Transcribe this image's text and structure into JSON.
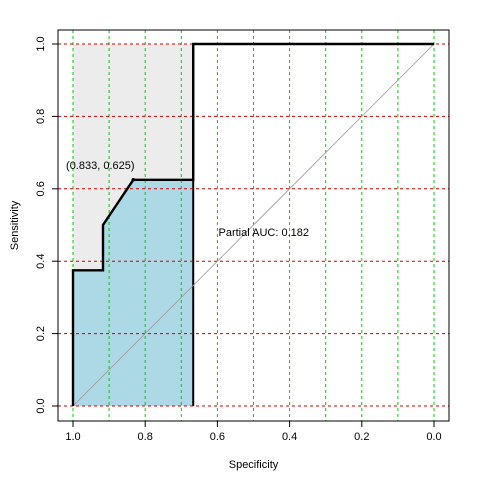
{
  "chart_data": {
    "type": "line",
    "xlabel": "Specificity",
    "ylabel": "Sensitivity",
    "xlim": [
      1.0,
      0.0
    ],
    "ylim": [
      0.0,
      1.0
    ],
    "x_reversed": true,
    "x_ticks": [
      "1.0",
      "0.8",
      "0.6",
      "0.4",
      "0.2",
      "0.0"
    ],
    "x_tick_values": [
      1.0,
      0.8,
      0.6,
      0.4,
      0.2,
      0.0
    ],
    "y_ticks": [
      "0.0",
      "0.2",
      "0.4",
      "0.6",
      "0.8",
      "1.0"
    ],
    "y_tick_values": [
      0.0,
      0.2,
      0.4,
      0.6,
      0.8,
      1.0
    ],
    "grid": {
      "vertical_color": "#00cc00",
      "horizontal_color": "#cc0000",
      "vertical_values": [
        1.0,
        0.9,
        0.8,
        0.7,
        0.6,
        0.5,
        0.4,
        0.3,
        0.2,
        0.1,
        0.0
      ],
      "horizontal_values": [
        0.0,
        0.2,
        0.4,
        0.6,
        0.8,
        1.0
      ]
    },
    "roc_curve": {
      "specificity": [
        1.0,
        1.0,
        0.917,
        0.917,
        0.833,
        0.667,
        0.667,
        0.0
      ],
      "sensitivity": [
        0.0,
        0.375,
        0.375,
        0.5,
        0.625,
        0.625,
        1.0,
        1.0
      ]
    },
    "partial_auc_range": [
      1.0,
      0.667
    ],
    "partial_auc_fill_color": "#add8e6",
    "partial_region_fill_color": "#ececec",
    "diagonal_color": "#999999",
    "highlight_point": {
      "specificity": 0.833,
      "sensitivity": 0.625,
      "label": "(0.833, 0.625)"
    },
    "annotation": {
      "text": "Partial AUC: 0.182",
      "specificity": 0.5,
      "sensitivity": 0.48
    }
  }
}
